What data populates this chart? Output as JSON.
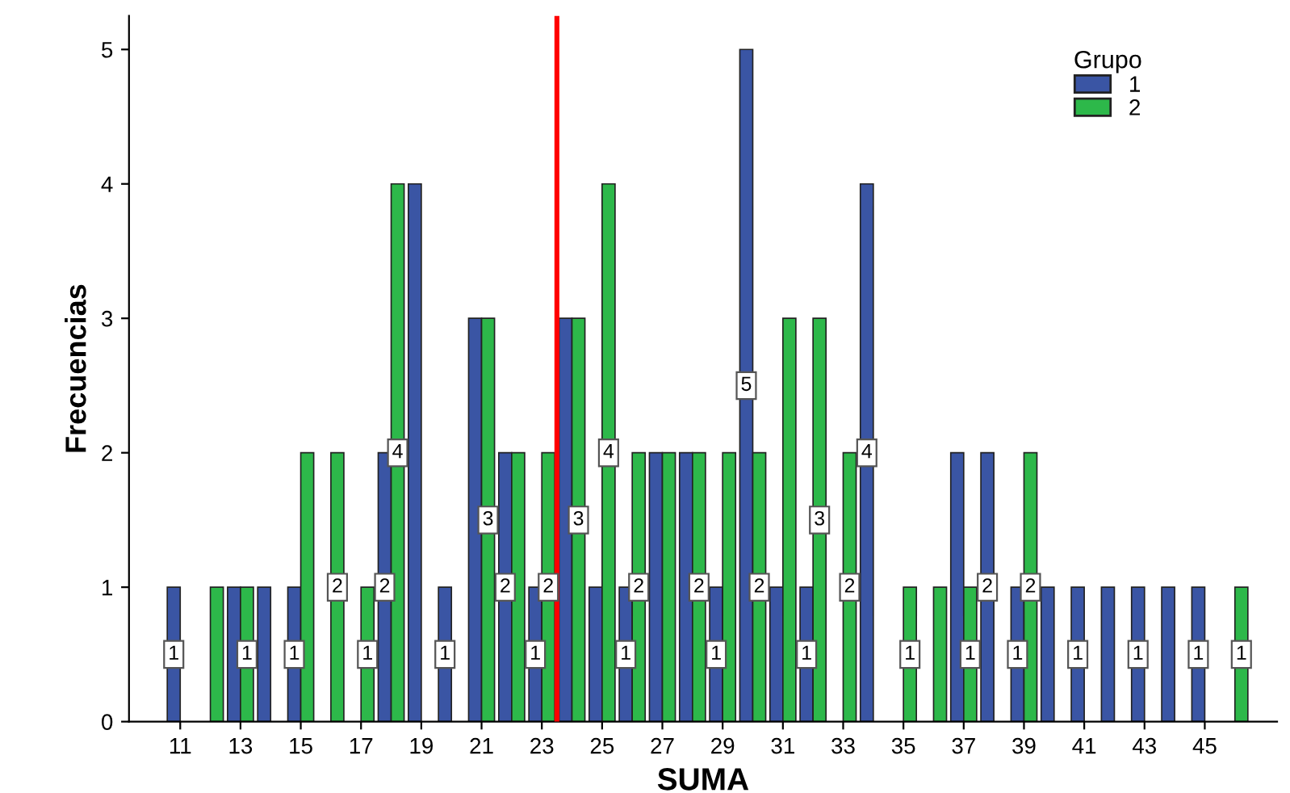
{
  "chart_data": {
    "type": "bar",
    "xlabel": "SUMA",
    "ylabel": "Frecuencias",
    "legend_title": "Grupo",
    "legend": "top right",
    "grid": false,
    "x": [
      11,
      12,
      13,
      14,
      15,
      16,
      17,
      18,
      19,
      20,
      21,
      22,
      23,
      24,
      25,
      26,
      27,
      28,
      29,
      30,
      31,
      32,
      33,
      34,
      35,
      36,
      37,
      38,
      39,
      40,
      41,
      42,
      43,
      44,
      45,
      46
    ],
    "xlim": [
      9.3,
      47.4
    ],
    "xticks": [
      11,
      13,
      15,
      17,
      19,
      21,
      23,
      25,
      27,
      29,
      31,
      33,
      35,
      37,
      39,
      41,
      43,
      45
    ],
    "ylim": [
      0,
      5.25
    ],
    "yticks": [
      0,
      1,
      2,
      3,
      4,
      5
    ],
    "series": [
      {
        "name": "1",
        "color": "#3a55a4",
        "values": [
          1,
          0,
          1,
          1,
          1,
          0,
          0,
          2,
          4,
          1,
          3,
          2,
          1,
          3,
          1,
          1,
          2,
          2,
          1,
          5,
          1,
          1,
          0,
          4,
          0,
          0,
          2,
          2,
          1,
          1,
          1,
          1,
          1,
          1,
          1,
          0
        ],
        "value_labels": [
          "1",
          null,
          null,
          null,
          "1",
          null,
          null,
          "2",
          null,
          "1",
          null,
          "2",
          "1",
          null,
          null,
          "1",
          null,
          null,
          "1",
          "5",
          null,
          "1",
          null,
          "4",
          null,
          null,
          null,
          "2",
          "1",
          null,
          "1",
          null,
          "1",
          null,
          "1",
          null
        ]
      },
      {
        "name": "2",
        "color": "#2db84a",
        "values": [
          0,
          1,
          1,
          0,
          2,
          2,
          1,
          4,
          0,
          0,
          3,
          2,
          2,
          3,
          4,
          2,
          2,
          2,
          2,
          2,
          3,
          3,
          2,
          0,
          1,
          1,
          1,
          0,
          2,
          0,
          0,
          0,
          0,
          0,
          0,
          1
        ],
        "value_labels": [
          null,
          null,
          "1",
          null,
          null,
          "2",
          "1",
          "4",
          null,
          null,
          "3",
          null,
          "2",
          "3",
          "4",
          "2",
          null,
          "2",
          null,
          "2",
          null,
          "3",
          "2",
          null,
          "1",
          null,
          "1",
          null,
          "2",
          null,
          null,
          null,
          null,
          null,
          null,
          "1"
        ]
      }
    ],
    "ref_lines": [
      {
        "axis": "x",
        "value": 23.5,
        "color": "#ff0000"
      }
    ]
  }
}
